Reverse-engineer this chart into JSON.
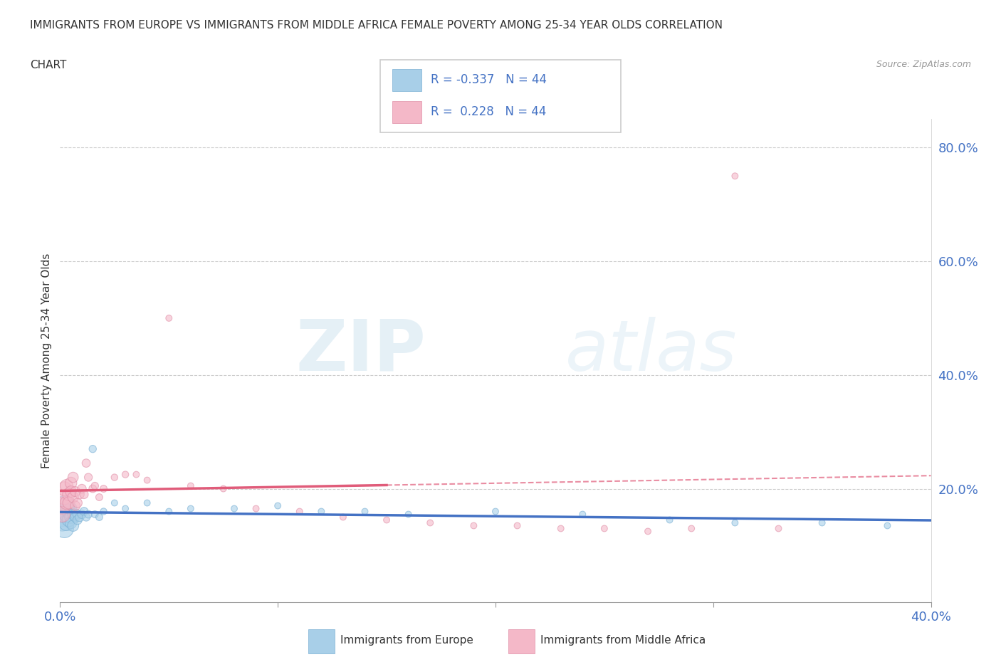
{
  "title_line1": "IMMIGRANTS FROM EUROPE VS IMMIGRANTS FROM MIDDLE AFRICA FEMALE POVERTY AMONG 25-34 YEAR OLDS CORRELATION",
  "title_line2": "CHART",
  "source": "Source: ZipAtlas.com",
  "ylabel": "Female Poverty Among 25-34 Year Olds",
  "xlim": [
    0.0,
    0.4
  ],
  "ylim": [
    0.0,
    0.85
  ],
  "xtick_positions": [
    0.0,
    0.1,
    0.2,
    0.3,
    0.4
  ],
  "ytick_positions": [
    0.2,
    0.4,
    0.6,
    0.8
  ],
  "legend_label1": "Immigrants from Europe",
  "legend_label2": "Immigrants from Middle Africa",
  "blue_color": "#a8cfe8",
  "pink_color": "#f4b8c8",
  "blue_line_color": "#4472C4",
  "pink_line_color": "#E05C7A",
  "watermark_zip": "ZIP",
  "watermark_atlas": "atlas",
  "blue_scatter_x": [
    0.001,
    0.001,
    0.002,
    0.002,
    0.002,
    0.003,
    0.003,
    0.003,
    0.004,
    0.004,
    0.005,
    0.005,
    0.005,
    0.006,
    0.006,
    0.007,
    0.007,
    0.008,
    0.008,
    0.009,
    0.01,
    0.011,
    0.012,
    0.013,
    0.015,
    0.016,
    0.018,
    0.02,
    0.025,
    0.03,
    0.04,
    0.05,
    0.06,
    0.08,
    0.1,
    0.12,
    0.14,
    0.16,
    0.2,
    0.24,
    0.28,
    0.31,
    0.35,
    0.38
  ],
  "blue_scatter_y": [
    0.155,
    0.145,
    0.17,
    0.13,
    0.155,
    0.155,
    0.14,
    0.155,
    0.16,
    0.145,
    0.15,
    0.165,
    0.14,
    0.135,
    0.155,
    0.155,
    0.15,
    0.155,
    0.145,
    0.15,
    0.155,
    0.16,
    0.15,
    0.155,
    0.27,
    0.155,
    0.15,
    0.16,
    0.175,
    0.165,
    0.175,
    0.16,
    0.165,
    0.165,
    0.17,
    0.16,
    0.16,
    0.155,
    0.16,
    0.155,
    0.145,
    0.14,
    0.14,
    0.135
  ],
  "blue_scatter_size": [
    600,
    500,
    400,
    350,
    300,
    280,
    250,
    230,
    200,
    180,
    160,
    150,
    140,
    130,
    120,
    110,
    100,
    90,
    85,
    80,
    75,
    70,
    65,
    60,
    55,
    50,
    50,
    45,
    40,
    40,
    40,
    40,
    40,
    40,
    40,
    40,
    40,
    40,
    40,
    40,
    40,
    40,
    40,
    40
  ],
  "pink_scatter_x": [
    0.001,
    0.001,
    0.002,
    0.002,
    0.003,
    0.003,
    0.004,
    0.004,
    0.005,
    0.005,
    0.006,
    0.006,
    0.007,
    0.007,
    0.008,
    0.009,
    0.01,
    0.011,
    0.012,
    0.013,
    0.015,
    0.016,
    0.018,
    0.02,
    0.025,
    0.03,
    0.035,
    0.04,
    0.05,
    0.06,
    0.075,
    0.09,
    0.11,
    0.13,
    0.15,
    0.17,
    0.19,
    0.21,
    0.23,
    0.25,
    0.27,
    0.29,
    0.31,
    0.33
  ],
  "pink_scatter_y": [
    0.17,
    0.155,
    0.185,
    0.2,
    0.175,
    0.205,
    0.19,
    0.175,
    0.21,
    0.195,
    0.185,
    0.22,
    0.195,
    0.17,
    0.175,
    0.19,
    0.2,
    0.19,
    0.245,
    0.22,
    0.2,
    0.205,
    0.185,
    0.2,
    0.22,
    0.225,
    0.225,
    0.215,
    0.5,
    0.205,
    0.2,
    0.165,
    0.16,
    0.15,
    0.145,
    0.14,
    0.135,
    0.135,
    0.13,
    0.13,
    0.125,
    0.13,
    0.75,
    0.13
  ],
  "pink_scatter_size": [
    300,
    250,
    220,
    200,
    180,
    170,
    160,
    150,
    140,
    130,
    120,
    110,
    100,
    95,
    90,
    85,
    80,
    75,
    70,
    65,
    60,
    55,
    50,
    50,
    45,
    45,
    40,
    40,
    40,
    40,
    40,
    40,
    40,
    40,
    40,
    40,
    40,
    40,
    40,
    40,
    40,
    40,
    40,
    40
  ]
}
